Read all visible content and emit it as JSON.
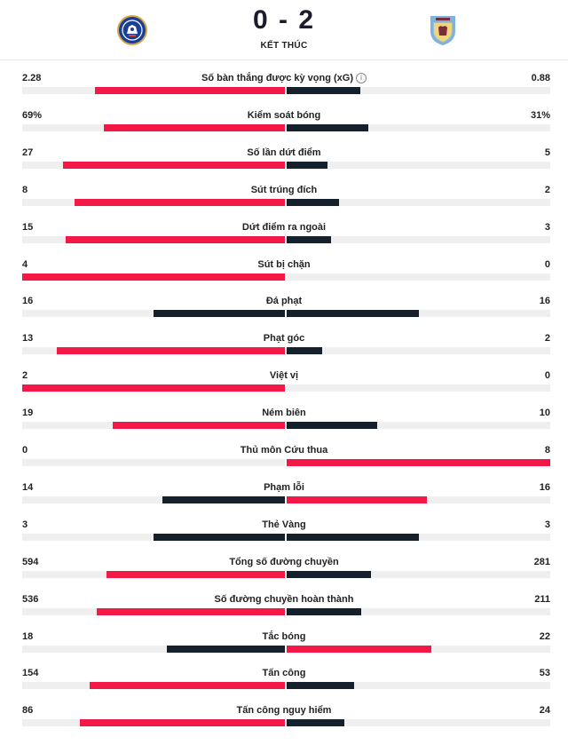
{
  "match": {
    "score": "0 - 2",
    "status": "KẾT THÚC",
    "home_crest": "chelsea-crest",
    "away_crest": "aston-villa-crest"
  },
  "colors": {
    "leader": "#f31846",
    "other": "#14202b",
    "track": "#efefef"
  },
  "info_icon": "info-icon",
  "stats": [
    {
      "label": "Số bàn thắng được kỳ vọng (xG)",
      "home": "2.28",
      "away": "0.88",
      "home_num": 2.28,
      "away_num": 0.88,
      "info": true
    },
    {
      "label": "Kiểm soát bóng",
      "home": "69%",
      "away": "31%",
      "home_num": 69,
      "away_num": 31
    },
    {
      "label": "Số lần dứt điểm",
      "home": "27",
      "away": "5",
      "home_num": 27,
      "away_num": 5
    },
    {
      "label": "Sút trúng đích",
      "home": "8",
      "away": "2",
      "home_num": 8,
      "away_num": 2
    },
    {
      "label": "Dứt điểm ra ngoài",
      "home": "15",
      "away": "3",
      "home_num": 15,
      "away_num": 3
    },
    {
      "label": "Sút bị chặn",
      "home": "4",
      "away": "0",
      "home_num": 4,
      "away_num": 0
    },
    {
      "label": "Đá phạt",
      "home": "16",
      "away": "16",
      "home_num": 16,
      "away_num": 16
    },
    {
      "label": "Phạt góc",
      "home": "13",
      "away": "2",
      "home_num": 13,
      "away_num": 2
    },
    {
      "label": "Việt vị",
      "home": "2",
      "away": "0",
      "home_num": 2,
      "away_num": 0
    },
    {
      "label": "Ném biên",
      "home": "19",
      "away": "10",
      "home_num": 19,
      "away_num": 10
    },
    {
      "label": "Thủ môn Cứu thua",
      "home": "0",
      "away": "8",
      "home_num": 0,
      "away_num": 8
    },
    {
      "label": "Phạm lỗi",
      "home": "14",
      "away": "16",
      "home_num": 14,
      "away_num": 16
    },
    {
      "label": "Thẻ Vàng",
      "home": "3",
      "away": "3",
      "home_num": 3,
      "away_num": 3
    },
    {
      "label": "Tổng số đường chuyền",
      "home": "594",
      "away": "281",
      "home_num": 594,
      "away_num": 281
    },
    {
      "label": "Số đường chuyền hoàn thành",
      "home": "536",
      "away": "211",
      "home_num": 536,
      "away_num": 211
    },
    {
      "label": "Tắc bóng",
      "home": "18",
      "away": "22",
      "home_num": 18,
      "away_num": 22
    },
    {
      "label": "Tấn công",
      "home": "154",
      "away": "53",
      "home_num": 154,
      "away_num": 53
    },
    {
      "label": "Tấn công nguy hiểm",
      "home": "86",
      "away": "24",
      "home_num": 86,
      "away_num": 24
    }
  ]
}
